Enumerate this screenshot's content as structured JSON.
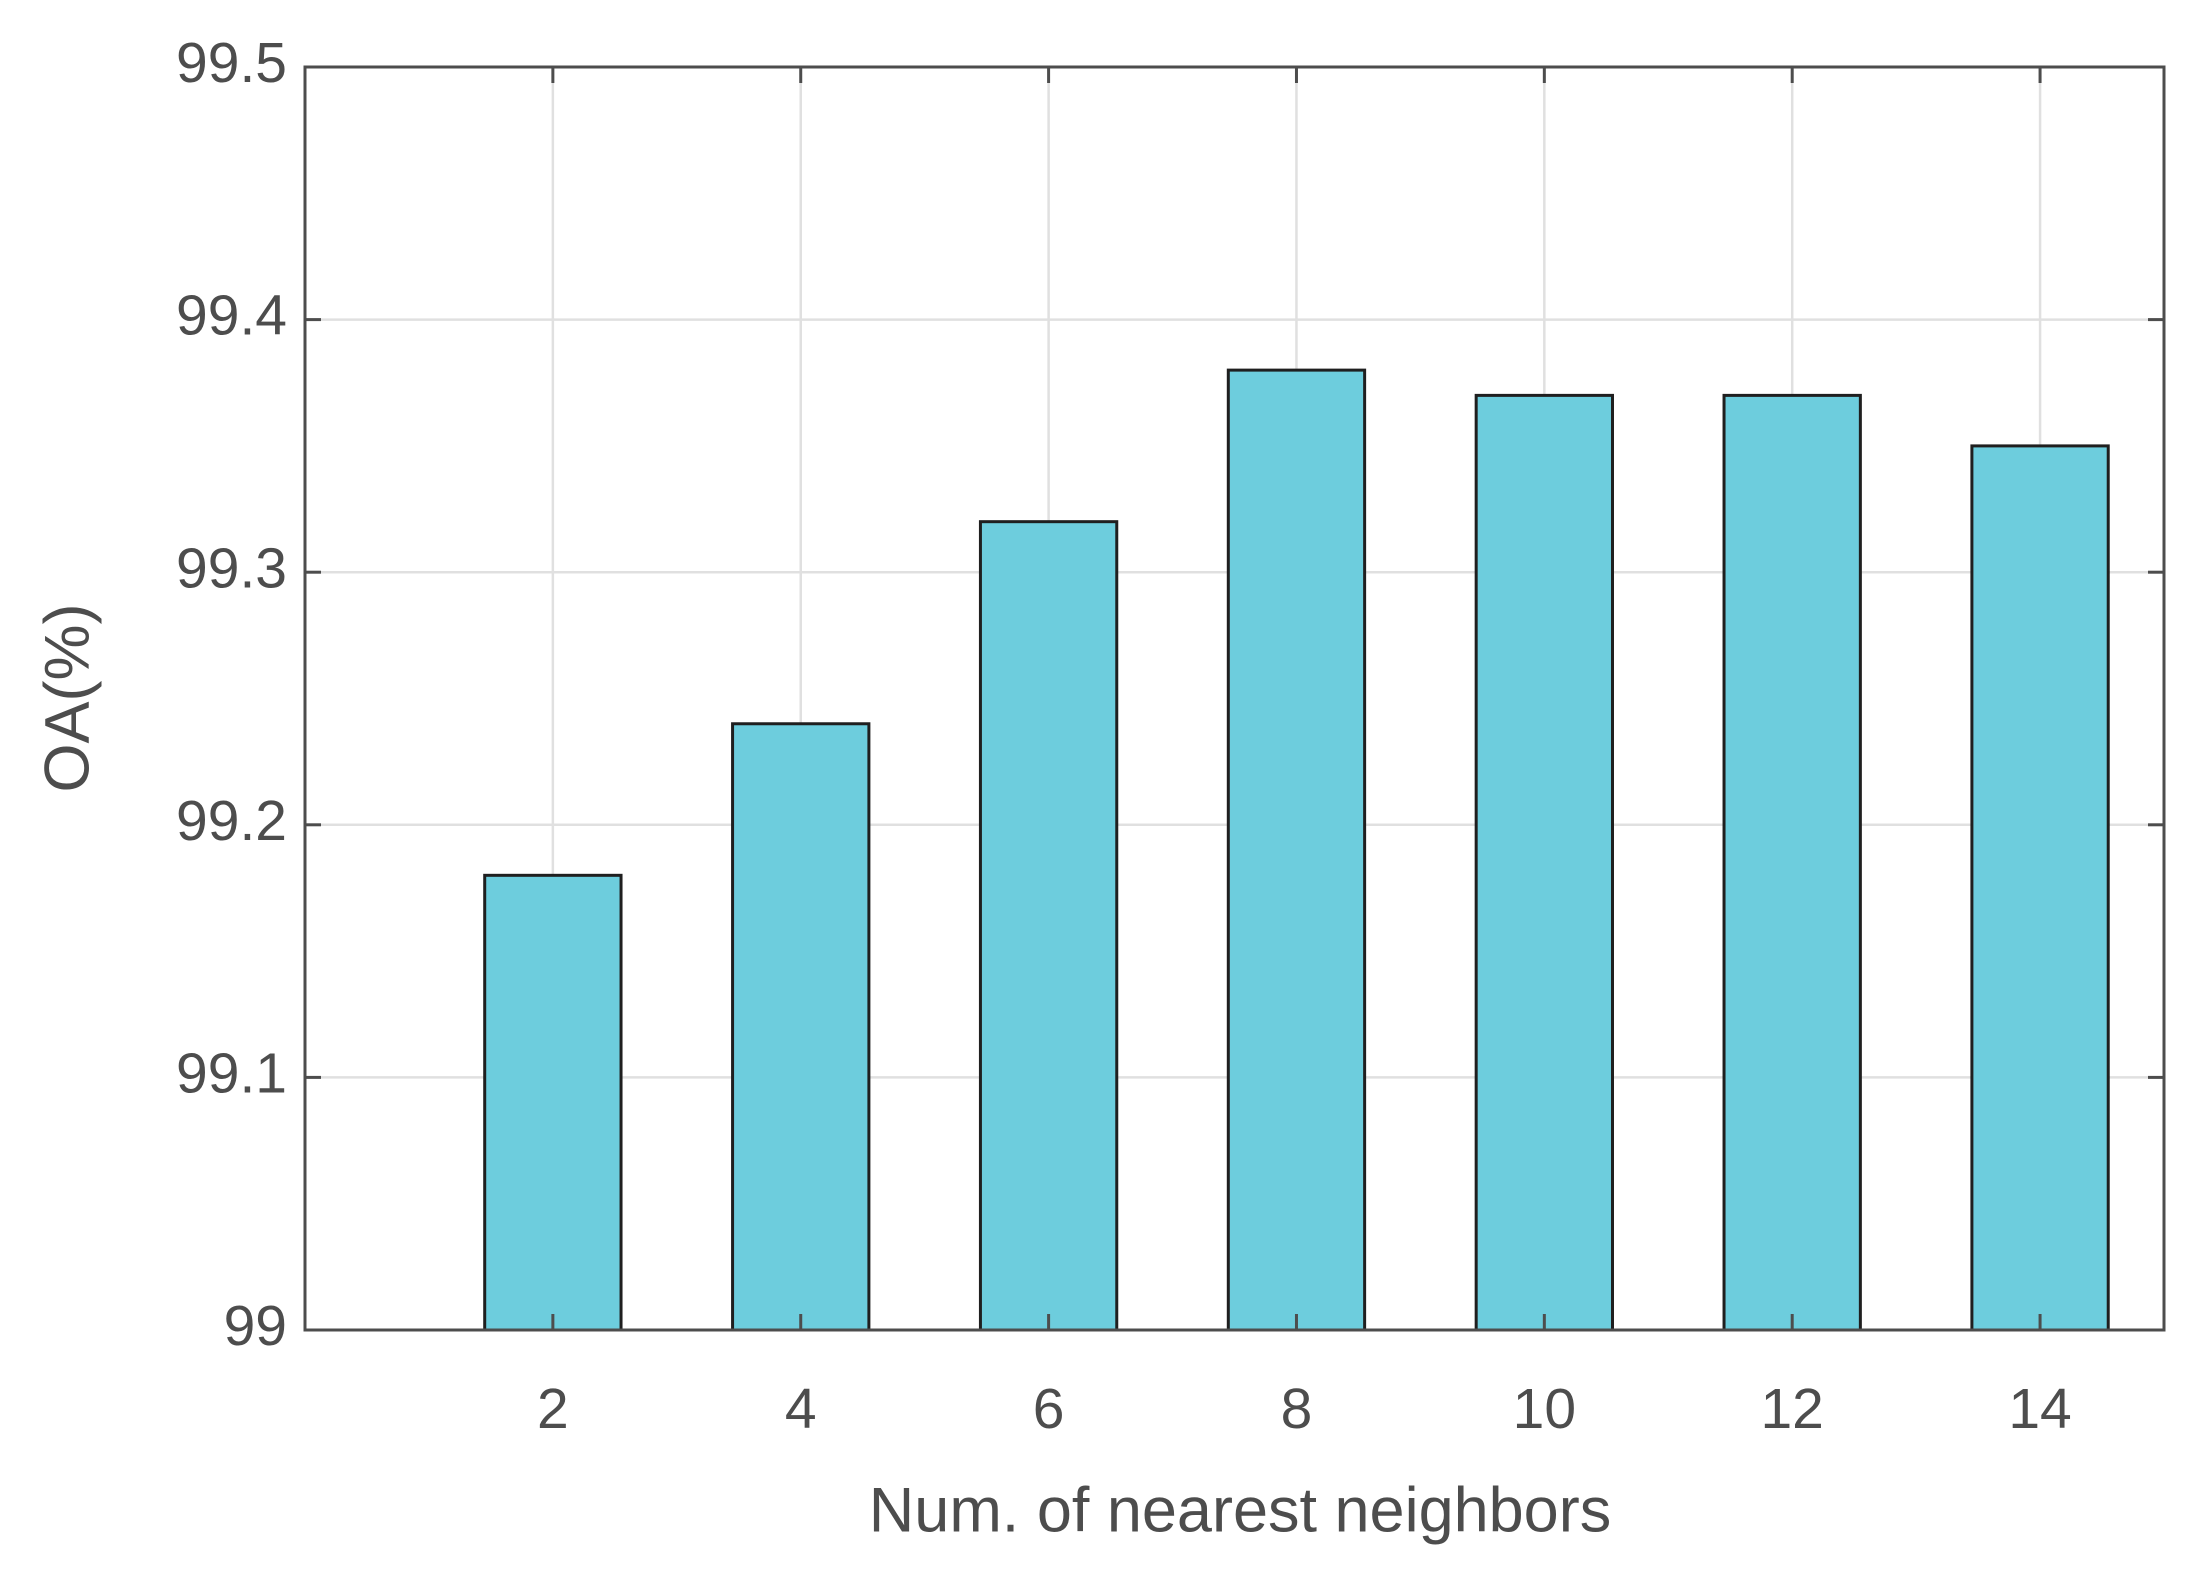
{
  "chart_data": {
    "type": "bar",
    "x_label": "Num. of nearest neighbors",
    "y_label": "OA(%)",
    "x": [
      2,
      4,
      6,
      8,
      10,
      12,
      14
    ],
    "values": [
      99.18,
      99.24,
      99.32,
      99.38,
      99.37,
      99.37,
      99.35
    ],
    "color": "#6dcddd",
    "xlim": [
      0,
      15
    ],
    "xticks": [
      2,
      4,
      6,
      8,
      10,
      12,
      14
    ],
    "ylim": [
      99,
      99.5
    ],
    "yticks": [
      99,
      99.1,
      99.2,
      99.3,
      99.4,
      99.5
    ],
    "grid": true
  }
}
